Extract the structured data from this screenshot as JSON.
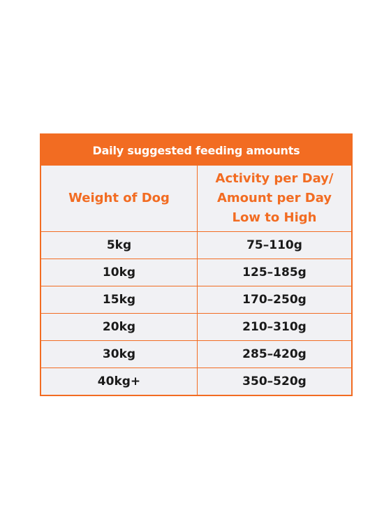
{
  "table": {
    "title": "Daily suggested feeding amounts",
    "headers": {
      "weight": "Weight of Dog",
      "amount": "Activity per Day/ Amount per Day Low to High"
    },
    "rows": [
      {
        "weight": "5kg",
        "amount": "75–110g"
      },
      {
        "weight": "10kg",
        "amount": "125–185g"
      },
      {
        "weight": "15kg",
        "amount": "170–250g"
      },
      {
        "weight": "20kg",
        "amount": "210–310g"
      },
      {
        "weight": "30kg",
        "amount": "285–420g"
      },
      {
        "weight": "40kg+",
        "amount": "350–520g"
      }
    ],
    "colors": {
      "accent": "#f26c22",
      "cell_background": "#f1f1f4",
      "text": "#1a1a1a"
    }
  }
}
